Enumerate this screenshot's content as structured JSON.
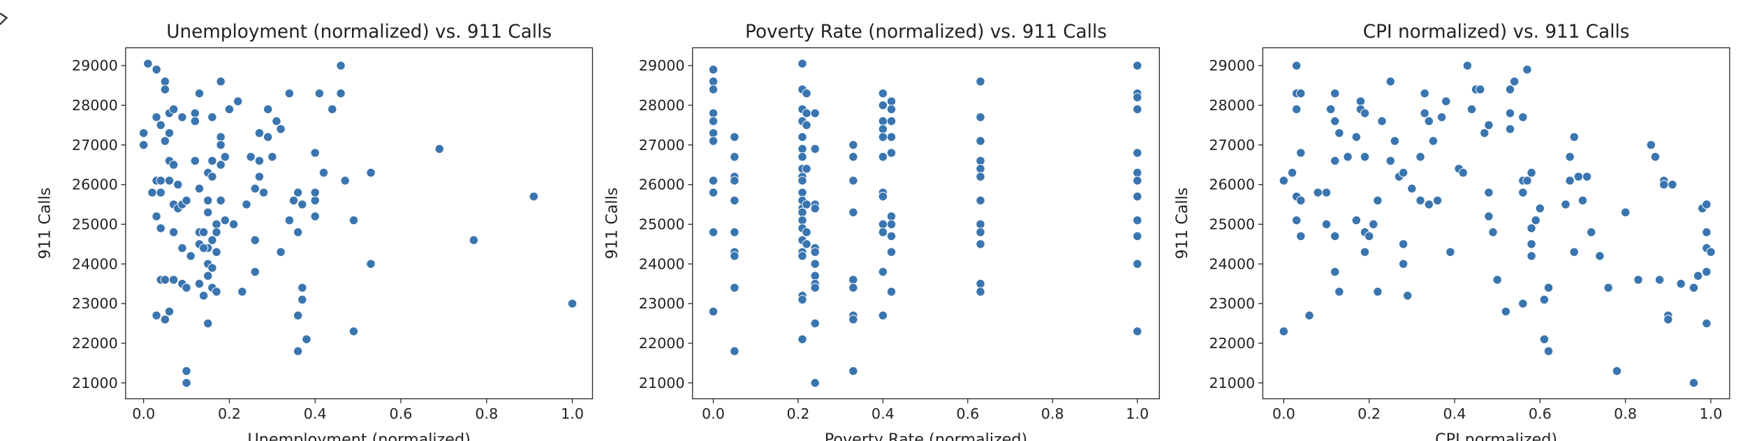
{
  "chart_data": [
    {
      "type": "scatter",
      "title": "Unemployment (normalized) vs. 911 Calls",
      "xlabel": "Unemployment (normalized)",
      "ylabel": "911 Calls",
      "color": "#3a75af",
      "xlim": [
        -0.042,
        1.047
      ],
      "ylim": [
        20600,
        29450
      ],
      "xticks": [
        {
          "value": 0,
          "label": "0.0"
        },
        {
          "value": 0.2,
          "label": "0.2"
        },
        {
          "value": 0.4,
          "label": "0.4"
        },
        {
          "value": 0.6,
          "label": "0.6"
        },
        {
          "value": 0.8,
          "label": "0.8"
        },
        {
          "value": 1,
          "label": "1.0"
        }
      ],
      "yticks": [
        21000,
        22000,
        23000,
        24000,
        25000,
        26000,
        27000,
        28000,
        29000
      ],
      "x": [
        0.01,
        0.03,
        0.05,
        0.05,
        0.0,
        0.0,
        0.03,
        0.04,
        0.06,
        0.07,
        0.09,
        0.06,
        0.05,
        0.03,
        0.04,
        0.06,
        0.06,
        0.07,
        0.08,
        0.02,
        0.04,
        0.07,
        0.08,
        0.09,
        0.1,
        0.03,
        0.04,
        0.07,
        0.09,
        0.11,
        0.04,
        0.05,
        0.07,
        0.09,
        0.1,
        0.03,
        0.05,
        0.06,
        0.1,
        0.1,
        0.12,
        0.13,
        0.12,
        0.16,
        0.18,
        0.2,
        0.22,
        0.18,
        0.18,
        0.12,
        0.16,
        0.19,
        0.18,
        0.15,
        0.16,
        0.13,
        0.15,
        0.18,
        0.15,
        0.17,
        0.19,
        0.21,
        0.13,
        0.14,
        0.16,
        0.17,
        0.15,
        0.17,
        0.13,
        0.14,
        0.15,
        0.16,
        0.15,
        0.16,
        0.13,
        0.14,
        0.17,
        0.15,
        0.23,
        0.26,
        0.26,
        0.24,
        0.26,
        0.28,
        0.27,
        0.25,
        0.27,
        0.3,
        0.27,
        0.29,
        0.29,
        0.31,
        0.32,
        0.34,
        0.36,
        0.35,
        0.37,
        0.34,
        0.36,
        0.32,
        0.37,
        0.37,
        0.36,
        0.38,
        0.36,
        0.4,
        0.42,
        0.4,
        0.4,
        0.4,
        0.41,
        0.44,
        0.46,
        0.46,
        0.47,
        0.49,
        0.49,
        0.53,
        0.53,
        0.69,
        0.77,
        0.91,
        1.0
      ],
      "values": [
        29050,
        28900,
        28600,
        28400,
        27300,
        27000,
        27700,
        27500,
        27800,
        27900,
        27700,
        27300,
        27100,
        26100,
        26100,
        26100,
        26600,
        26500,
        26000,
        25800,
        25800,
        25500,
        25400,
        25500,
        25600,
        25200,
        24900,
        24800,
        24400,
        24200,
        23600,
        23600,
        23600,
        23500,
        23400,
        22700,
        22600,
        22800,
        21300,
        21000,
        27800,
        28300,
        27600,
        27700,
        28600,
        27900,
        28100,
        27200,
        27000,
        26600,
        26600,
        26700,
        26500,
        26300,
        26200,
        25900,
        25600,
        25600,
        25300,
        25000,
        25100,
        25000,
        24800,
        24800,
        24600,
        24800,
        24400,
        24300,
        24500,
        24400,
        24000,
        23900,
        23700,
        23400,
        23500,
        23200,
        23300,
        22500,
        23300,
        23800,
        24600,
        25500,
        25900,
        25800,
        26200,
        26700,
        26600,
        26700,
        27300,
        27200,
        27900,
        27600,
        27400,
        28300,
        25800,
        25600,
        25500,
        25100,
        24800,
        24300,
        23400,
        23100,
        22700,
        22100,
        21800,
        26800,
        26300,
        25600,
        25800,
        25200,
        28300,
        27900,
        28300,
        29000,
        26100,
        25100,
        22300,
        26300,
        24000,
        26900,
        24600,
        25700,
        23000
      ]
    },
    {
      "type": "scatter",
      "title": "Poverty Rate (normalized) vs. 911 Calls",
      "xlabel": "Poverty Rate (normalized)",
      "ylabel": "911 Calls",
      "color": "#3a75af",
      "xlim": [
        -0.049,
        1.052
      ],
      "ylim": [
        20600,
        29450
      ],
      "xticks": [
        {
          "value": 0,
          "label": "0.0"
        },
        {
          "value": 0.2,
          "label": "0.2"
        },
        {
          "value": 0.4,
          "label": "0.4"
        },
        {
          "value": 0.6,
          "label": "0.6"
        },
        {
          "value": 0.8,
          "label": "0.8"
        },
        {
          "value": 1,
          "label": "1.0"
        }
      ],
      "yticks": [
        21000,
        22000,
        23000,
        24000,
        25000,
        26000,
        27000,
        28000,
        29000
      ],
      "x": [
        0,
        0,
        0,
        0,
        0,
        0,
        0,
        0,
        0,
        0,
        0,
        0.05,
        0.05,
        0.05,
        0.05,
        0.05,
        0.05,
        0.05,
        0.05,
        0.05,
        0.05,
        0.21,
        0.21,
        0.21,
        0.21,
        0.21,
        0.21,
        0.21,
        0.21,
        0.21,
        0.21,
        0.21,
        0.21,
        0.21,
        0.21,
        0.21,
        0.21,
        0.21,
        0.21,
        0.21,
        0.21,
        0.21,
        0.21,
        0.22,
        0.22,
        0.22,
        0.22,
        0.22,
        0.22,
        0.22,
        0.24,
        0.24,
        0.24,
        0.24,
        0.24,
        0.24,
        0.24,
        0.24,
        0.24,
        0.24,
        0.24,
        0.24,
        0.33,
        0.33,
        0.33,
        0.33,
        0.33,
        0.33,
        0.33,
        0.33,
        0.33,
        0.4,
        0.4,
        0.4,
        0.4,
        0.4,
        0.4,
        0.4,
        0.4,
        0.4,
        0.4,
        0.4,
        0.4,
        0.42,
        0.42,
        0.42,
        0.42,
        0.42,
        0.42,
        0.42,
        0.42,
        0.42,
        0.42,
        0.63,
        0.63,
        0.63,
        0.63,
        0.63,
        0.63,
        0.63,
        0.63,
        0.63,
        0.63,
        0.63,
        0.63,
        1.0,
        1.0,
        1.0,
        1.0,
        1.0,
        1.0,
        1.0,
        1.0,
        1.0,
        1.0,
        1.0,
        1.0
      ],
      "values": [
        28900,
        28600,
        28400,
        27800,
        27600,
        27300,
        27100,
        26100,
        25800,
        24800,
        22800,
        27200,
        26700,
        26200,
        26100,
        25600,
        24800,
        24300,
        24200,
        23400,
        21800,
        29050,
        28400,
        27900,
        27600,
        27200,
        26900,
        26700,
        26400,
        26200,
        26100,
        25800,
        25600,
        25400,
        25300,
        25100,
        24900,
        24600,
        24300,
        24200,
        23200,
        23100,
        22100,
        28300,
        27800,
        27500,
        26400,
        25500,
        24800,
        24500,
        27800,
        26900,
        25500,
        25400,
        24400,
        24300,
        24000,
        23700,
        23500,
        23400,
        22500,
        21000,
        27000,
        26700,
        26100,
        25300,
        23600,
        23400,
        22700,
        22600,
        21300,
        28300,
        28000,
        27600,
        27400,
        27200,
        26700,
        25800,
        25700,
        25000,
        24800,
        23800,
        22700,
        28100,
        27900,
        27600,
        27200,
        26800,
        25200,
        25000,
        24700,
        24300,
        23300,
        28600,
        27700,
        27100,
        26600,
        26400,
        26200,
        25600,
        25000,
        24800,
        24500,
        23500,
        23300,
        29000,
        28300,
        28200,
        27900,
        26800,
        26300,
        26100,
        25700,
        25100,
        24700,
        24000,
        22300
      ]
    },
    {
      "type": "scatter",
      "title": "CPI normalized) vs. 911 Calls",
      "xlabel": "CPI normalized)",
      "ylabel": "911 Calls",
      "color": "#3a75af",
      "xlim": [
        -0.049,
        1.044
      ],
      "ylim": [
        20600,
        29450
      ],
      "xticks": [
        {
          "value": 0,
          "label": "0.0"
        },
        {
          "value": 0.2,
          "label": "0.2"
        },
        {
          "value": 0.4,
          "label": "0.4"
        },
        {
          "value": 0.6,
          "label": "0.6"
        },
        {
          "value": 0.8,
          "label": "0.8"
        },
        {
          "value": 1,
          "label": "1.0"
        }
      ],
      "yticks": [
        21000,
        22000,
        23000,
        24000,
        25000,
        26000,
        27000,
        28000,
        29000
      ],
      "x": [
        0.0,
        0.0,
        0.02,
        0.03,
        0.03,
        0.04,
        0.03,
        0.04,
        0.03,
        0.03,
        0.04,
        0.04,
        0.06,
        0.08,
        0.1,
        0.11,
        0.12,
        0.12,
        0.13,
        0.12,
        0.1,
        0.12,
        0.12,
        0.13,
        0.15,
        0.17,
        0.17,
        0.18,
        0.18,
        0.19,
        0.19,
        0.19,
        0.2,
        0.19,
        0.21,
        0.22,
        0.22,
        0.23,
        0.25,
        0.25,
        0.26,
        0.27,
        0.28,
        0.28,
        0.28,
        0.29,
        0.3,
        0.32,
        0.32,
        0.33,
        0.33,
        0.34,
        0.35,
        0.34,
        0.36,
        0.37,
        0.38,
        0.39,
        0.41,
        0.42,
        0.43,
        0.44,
        0.45,
        0.46,
        0.47,
        0.48,
        0.48,
        0.48,
        0.49,
        0.5,
        0.52,
        0.53,
        0.53,
        0.53,
        0.54,
        0.56,
        0.56,
        0.56,
        0.57,
        0.57,
        0.56,
        0.58,
        0.58,
        0.58,
        0.58,
        0.59,
        0.6,
        0.61,
        0.61,
        0.62,
        0.62,
        0.66,
        0.67,
        0.67,
        0.68,
        0.68,
        0.69,
        0.7,
        0.71,
        0.72,
        0.74,
        0.76,
        0.78,
        0.8,
        0.83,
        0.86,
        0.87,
        0.88,
        0.89,
        0.89,
        0.9,
        0.9,
        0.91,
        0.93,
        0.96,
        0.96,
        0.97,
        0.98,
        0.99,
        0.99,
        0.99,
        1.0,
        0.99,
        0.99
      ],
      "values": [
        22300,
        26100,
        26300,
        28300,
        29000,
        28300,
        27900,
        26800,
        25700,
        25100,
        24700,
        25600,
        22700,
        25800,
        25800,
        27900,
        28300,
        27600,
        27300,
        26600,
        25000,
        24700,
        23800,
        23300,
        26700,
        25100,
        27200,
        28100,
        27900,
        27800,
        26700,
        24800,
        24700,
        24300,
        25000,
        23300,
        25600,
        27600,
        28600,
        26600,
        27100,
        26200,
        26300,
        24500,
        24000,
        23200,
        25900,
        25600,
        26700,
        28300,
        27800,
        27600,
        27100,
        25500,
        25600,
        27700,
        28100,
        24300,
        26400,
        26300,
        29000,
        27900,
        28400,
        28400,
        27300,
        27500,
        25800,
        25200,
        24800,
        23600,
        22800,
        27400,
        27800,
        28400,
        28600,
        27700,
        25800,
        26100,
        28900,
        26100,
        23000,
        26300,
        24900,
        24500,
        24200,
        25100,
        25400,
        23100,
        22100,
        23400,
        21800,
        25500,
        26700,
        26100,
        24300,
        27200,
        26200,
        25600,
        26200,
        24800,
        24200,
        23400,
        21300,
        25300,
        23600,
        27000,
        26700,
        23600,
        26100,
        26000,
        22700,
        22600,
        26000,
        23500,
        21000,
        23400,
        23700,
        25400,
        25500,
        24800,
        24400,
        24300,
        23800,
        22500
      ]
    }
  ]
}
